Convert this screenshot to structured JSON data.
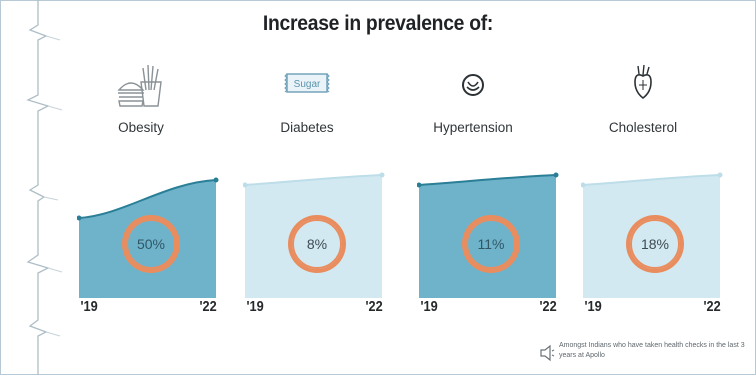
{
  "title": "Increase in prevalence of:",
  "footnote": "Amongst Indians who have taken health checks in the last 3 years at Apollo",
  "colors": {
    "dark_fill": "#6fb3cb",
    "light_fill": "#d3e9f1",
    "dark_line": "#2a7f97",
    "light_line": "#bddde9",
    "ring": "#e98d5f"
  },
  "categories": [
    {
      "name": "Obesity",
      "icon": "burger-fries-icon",
      "icon_text": ""
    },
    {
      "name": "Diabetes",
      "icon": "sugar-packet-icon",
      "icon_text": "Sugar"
    },
    {
      "name": "Hypertension",
      "icon": "heart-monitor-icon",
      "icon_text": ""
    },
    {
      "name": "Cholesterol",
      "icon": "artery-heart-icon",
      "icon_text": ""
    }
  ],
  "chart_data": [
    {
      "type": "area",
      "series": [
        {
          "name": "Obesity",
          "x": [
            "'19",
            "'22"
          ],
          "increase_pct": 50
        }
      ],
      "x_labels": [
        "'19",
        "'22"
      ],
      "label": "50%",
      "style": "dark",
      "curve": "s-rise"
    },
    {
      "type": "area",
      "series": [
        {
          "name": "Diabetes",
          "x": [
            "'19",
            "'22"
          ],
          "increase_pct": 8
        }
      ],
      "x_labels": [
        "'19",
        "'22"
      ],
      "label": "8%",
      "style": "light",
      "curve": "gentle-rise"
    },
    {
      "type": "area",
      "series": [
        {
          "name": "Hypertension",
          "x": [
            "'19",
            "'22"
          ],
          "increase_pct": 11
        }
      ],
      "x_labels": [
        "'19",
        "'22"
      ],
      "label": "11%",
      "style": "dark",
      "curve": "gentle-rise"
    },
    {
      "type": "area",
      "series": [
        {
          "name": "Cholesterol",
          "x": [
            "'19",
            "'22"
          ],
          "increase_pct": 18
        }
      ],
      "x_labels": [
        "'19",
        "'22"
      ],
      "label": "18%",
      "style": "light",
      "curve": "gentle-rise"
    }
  ]
}
